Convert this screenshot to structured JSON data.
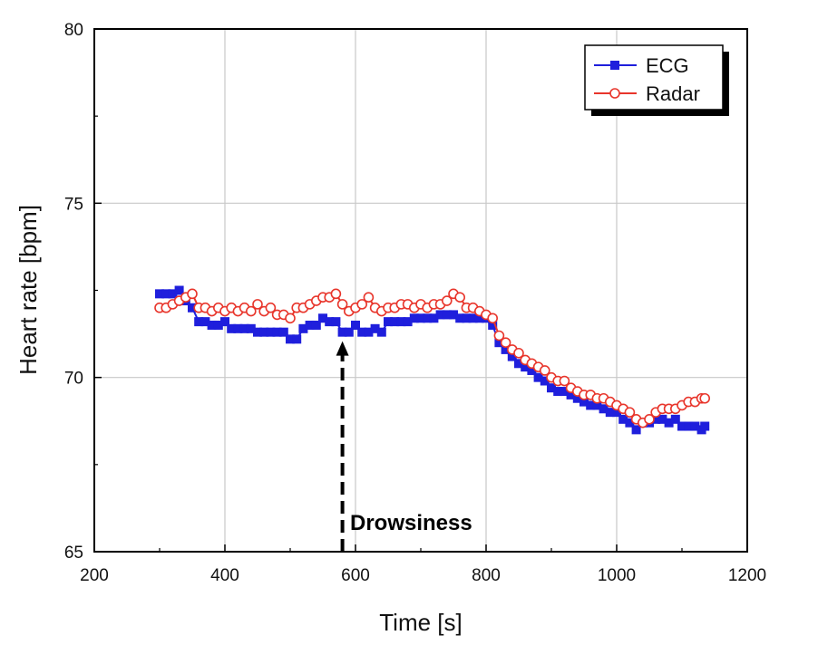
{
  "chart_data": {
    "type": "line",
    "title": "",
    "xlabel": "Time [s]",
    "ylabel": "Heart rate [bpm]",
    "xlim": [
      200,
      1200
    ],
    "ylim": [
      65,
      80
    ],
    "xticks": [
      200,
      400,
      600,
      800,
      1000,
      1200
    ],
    "yticks": [
      65,
      70,
      75,
      80
    ],
    "grid": true,
    "legend_position": "top-right",
    "series": [
      {
        "name": "ECG",
        "color": "#1f1fdc",
        "marker": "filled-square",
        "x": [
          300,
          310,
          320,
          330,
          340,
          350,
          360,
          370,
          380,
          390,
          400,
          410,
          420,
          430,
          440,
          450,
          460,
          470,
          480,
          490,
          500,
          510,
          520,
          530,
          540,
          550,
          560,
          570,
          580,
          590,
          600,
          610,
          620,
          630,
          640,
          650,
          660,
          670,
          680,
          690,
          700,
          710,
          720,
          730,
          740,
          750,
          760,
          770,
          780,
          790,
          800,
          810,
          820,
          830,
          840,
          850,
          860,
          870,
          880,
          890,
          900,
          910,
          920,
          930,
          940,
          950,
          960,
          970,
          980,
          990,
          1000,
          1010,
          1020,
          1030,
          1040,
          1050,
          1060,
          1070,
          1080,
          1090,
          1100,
          1110,
          1120,
          1130,
          1135
        ],
        "y": [
          72.4,
          72.4,
          72.4,
          72.5,
          72.2,
          72.0,
          71.6,
          71.6,
          71.5,
          71.5,
          71.6,
          71.4,
          71.4,
          71.4,
          71.4,
          71.3,
          71.3,
          71.3,
          71.3,
          71.3,
          71.1,
          71.1,
          71.4,
          71.5,
          71.5,
          71.7,
          71.6,
          71.6,
          71.3,
          71.3,
          71.5,
          71.3,
          71.3,
          71.4,
          71.3,
          71.6,
          71.6,
          71.6,
          71.6,
          71.7,
          71.7,
          71.7,
          71.7,
          71.8,
          71.8,
          71.8,
          71.7,
          71.7,
          71.7,
          71.7,
          71.7,
          71.5,
          71.0,
          70.8,
          70.6,
          70.4,
          70.3,
          70.2,
          70.0,
          69.9,
          69.7,
          69.6,
          69.6,
          69.5,
          69.4,
          69.3,
          69.2,
          69.2,
          69.1,
          69.0,
          69.0,
          68.8,
          68.7,
          68.5,
          68.7,
          68.7,
          68.8,
          68.8,
          68.7,
          68.8,
          68.6,
          68.6,
          68.6,
          68.5,
          68.6
        ]
      },
      {
        "name": "Radar",
        "color": "#e8352b",
        "marker": "open-circle",
        "x": [
          300,
          310,
          320,
          330,
          340,
          350,
          360,
          370,
          380,
          390,
          400,
          410,
          420,
          430,
          440,
          450,
          460,
          470,
          480,
          490,
          500,
          510,
          520,
          530,
          540,
          550,
          560,
          570,
          580,
          590,
          600,
          610,
          620,
          630,
          640,
          650,
          660,
          670,
          680,
          690,
          700,
          710,
          720,
          730,
          740,
          750,
          760,
          770,
          780,
          790,
          800,
          810,
          820,
          830,
          840,
          850,
          860,
          870,
          880,
          890,
          900,
          910,
          920,
          930,
          940,
          950,
          960,
          970,
          980,
          990,
          1000,
          1010,
          1020,
          1030,
          1040,
          1050,
          1060,
          1070,
          1080,
          1090,
          1100,
          1110,
          1120,
          1130,
          1135
        ],
        "y": [
          72.0,
          72.0,
          72.1,
          72.2,
          72.3,
          72.4,
          72.0,
          72.0,
          71.9,
          72.0,
          71.9,
          72.0,
          71.9,
          72.0,
          71.9,
          72.1,
          71.9,
          72.0,
          71.8,
          71.8,
          71.7,
          72.0,
          72.0,
          72.1,
          72.2,
          72.3,
          72.3,
          72.4,
          72.1,
          71.9,
          72.0,
          72.1,
          72.3,
          72.0,
          71.9,
          72.0,
          72.0,
          72.1,
          72.1,
          72.0,
          72.1,
          72.0,
          72.1,
          72.1,
          72.2,
          72.4,
          72.3,
          72.0,
          72.0,
          71.9,
          71.8,
          71.7,
          71.2,
          71.0,
          70.8,
          70.7,
          70.5,
          70.4,
          70.3,
          70.2,
          70.0,
          69.9,
          69.9,
          69.7,
          69.6,
          69.5,
          69.5,
          69.4,
          69.4,
          69.3,
          69.2,
          69.1,
          69.0,
          68.8,
          68.7,
          68.8,
          69.0,
          69.1,
          69.1,
          69.1,
          69.2,
          69.3,
          69.3,
          69.4,
          69.4
        ]
      }
    ],
    "annotations": [
      {
        "text": "Drowsiness",
        "x": 580,
        "y_from": 65,
        "y_to": 71.3,
        "style": "dashed-arrow-up"
      }
    ]
  }
}
